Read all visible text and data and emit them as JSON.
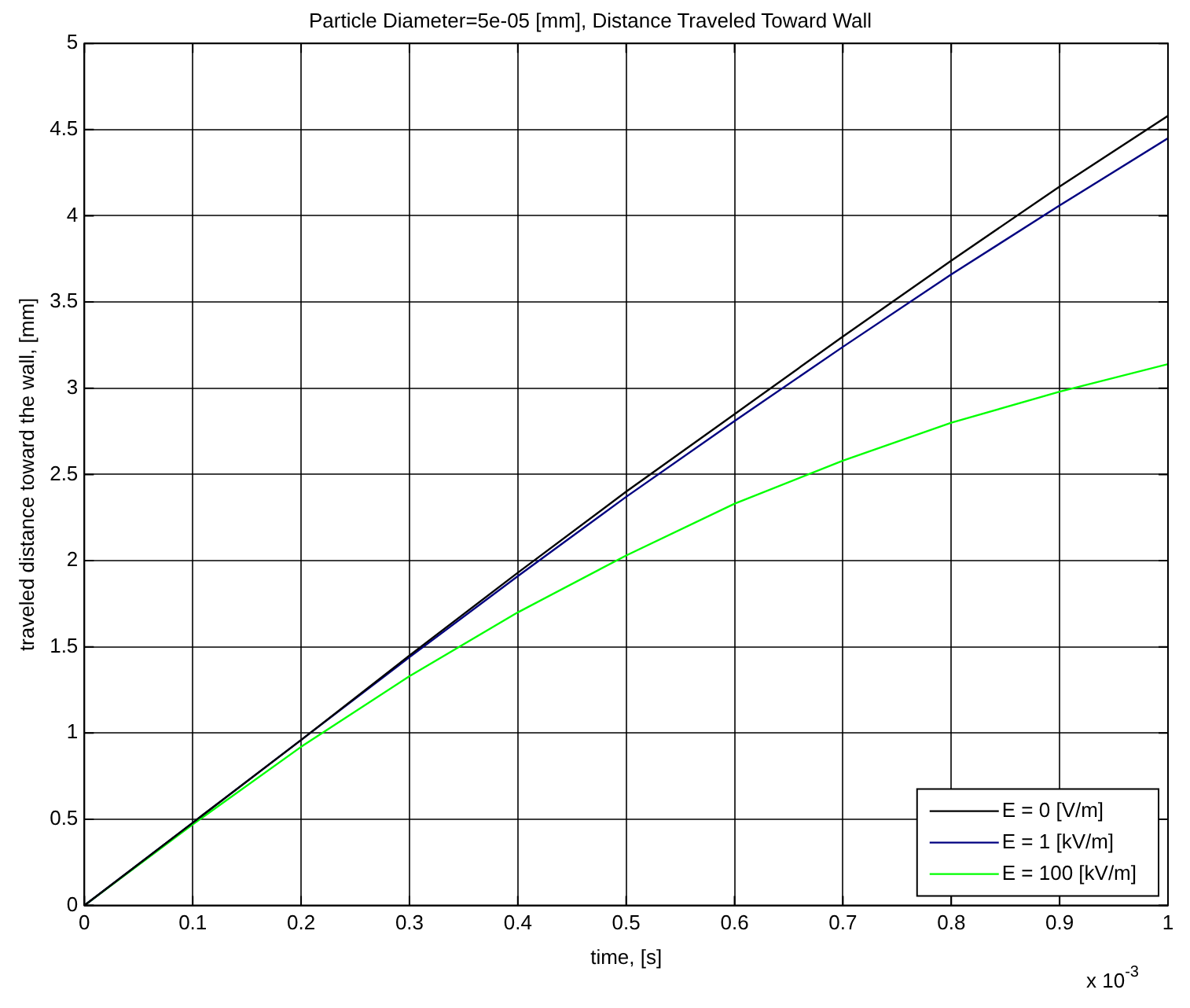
{
  "chart_data": {
    "type": "line",
    "title": "Particle Diameter=5e-05 [mm], Distance Traveled Toward Wall",
    "xlabel": "time, [s]",
    "ylabel": "traveled distance toward the wall, [mm]",
    "x": [
      0,
      0.1,
      0.2,
      0.3,
      0.4,
      0.5,
      0.6,
      0.7,
      0.8,
      0.9,
      1
    ],
    "series": [
      {
        "name": "E = 0 [V/m]",
        "color": "#000000",
        "values": [
          0,
          0.48,
          0.96,
          1.45,
          1.93,
          2.4,
          2.85,
          3.3,
          3.74,
          4.17,
          4.58
        ]
      },
      {
        "name": "E = 1 [kV/m]",
        "color": "#000080",
        "values": [
          0,
          0.48,
          0.96,
          1.44,
          1.91,
          2.37,
          2.81,
          3.24,
          3.66,
          4.06,
          4.45
        ]
      },
      {
        "name": "E = 100 [kV/m]",
        "color": "#00ff00",
        "values": [
          0,
          0.47,
          0.92,
          1.33,
          1.7,
          2.03,
          2.33,
          2.58,
          2.8,
          2.98,
          3.14
        ]
      }
    ],
    "xlim": [
      0,
      1
    ],
    "xticks": [
      0,
      0.1,
      0.2,
      0.3,
      0.4,
      0.5,
      0.6,
      0.7,
      0.8,
      0.9,
      1
    ],
    "ylim": [
      0,
      5
    ],
    "yticks": [
      0,
      0.5,
      1,
      1.5,
      2,
      2.5,
      3,
      3.5,
      4,
      4.5,
      5
    ],
    "grid": true,
    "legend": "bottom right",
    "marker": "none",
    "line_style": "solid",
    "annotations": [
      "x 10$^{-3}$"
    ]
  }
}
